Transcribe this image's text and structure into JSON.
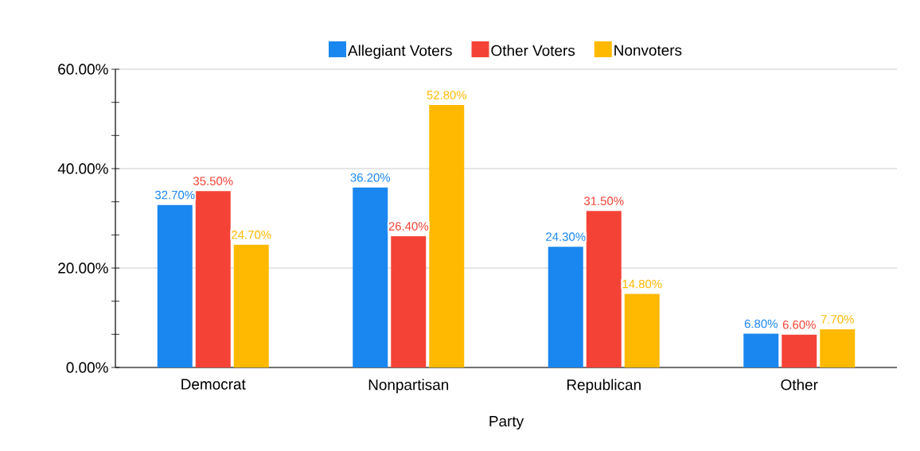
{
  "chart_data": {
    "type": "bar",
    "xlabel": "Party",
    "categories": [
      "Democrat",
      "Nonpartisan",
      "Republican",
      "Other"
    ],
    "series": [
      {
        "name": "Allegiant Voters",
        "color": "#1a87f0",
        "values": [
          32.7,
          36.2,
          24.3,
          6.8
        ],
        "value_labels": [
          "32.70%",
          "36.20%",
          "24.30%",
          "6.80%"
        ]
      },
      {
        "name": "Other Voters",
        "color": "#f44336",
        "values": [
          35.5,
          26.4,
          31.5,
          6.6
        ],
        "value_labels": [
          "35.50%",
          "26.40%",
          "31.50%",
          "6.60%"
        ]
      },
      {
        "name": "Nonvoters",
        "color": "#ffb900",
        "values": [
          24.7,
          52.8,
          14.8,
          7.7
        ],
        "value_labels": [
          "24.70%",
          "52.80%",
          "14.80%",
          "7.70%"
        ]
      }
    ],
    "ylim": [
      0,
      60
    ],
    "yticks": [
      {
        "value": 0,
        "label": "0.00%"
      },
      {
        "value": 6.67,
        "label": null
      },
      {
        "value": 13.33,
        "label": null
      },
      {
        "value": 20,
        "label": "20.00%"
      },
      {
        "value": 26.67,
        "label": null
      },
      {
        "value": 33.33,
        "label": null
      },
      {
        "value": 40,
        "label": "40.00%"
      },
      {
        "value": 46.67,
        "label": null
      },
      {
        "value": 53.33,
        "label": null
      },
      {
        "value": 60,
        "label": "60.00%"
      }
    ],
    "grid": "y",
    "legend": "top"
  }
}
